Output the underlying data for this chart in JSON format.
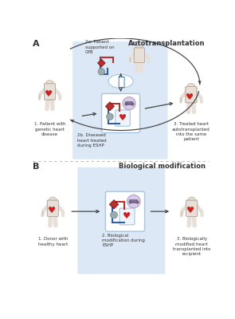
{
  "title_A": "Autotransplantation",
  "title_B": "Biological modification",
  "label_A": "A",
  "label_B": "B",
  "panel_A": {
    "step1_label": "1. Patient with\ngenetic heart\ndisease",
    "step2a_label": "2a. Patient\nsupported on\nCPB",
    "step2b_label": "2b. Diseased\nheart treated\nduring ESHP",
    "step3_label": "3. Treated heart\nautotransplanted\ninto the same\npatient"
  },
  "panel_B": {
    "step1_label": "1. Donor with\nhealthy heart",
    "step2_label": "2. Biological\nmodification during\nESHP",
    "step3_label": "3. Biologically\nmodified heart\ntransplanted into\nrecipient"
  },
  "bg_color": "#ffffff",
  "panel_bg": "#dce8f5",
  "box_border": "#a8c4e0",
  "red_color": "#b83030",
  "blue_color": "#3060a0",
  "gray_circle": "#9aabae",
  "teal_color": "#2a7a9a",
  "lavender_color": "#d8cce8",
  "lavender_border": "#b0a0c8",
  "text_color": "#333333",
  "arrow_color": "#444444",
  "figure_fill": "#e8e0d8",
  "figure_edge": "#b8a898",
  "dotted_color": "#bbbbbb",
  "heart_red": "#cc2222"
}
